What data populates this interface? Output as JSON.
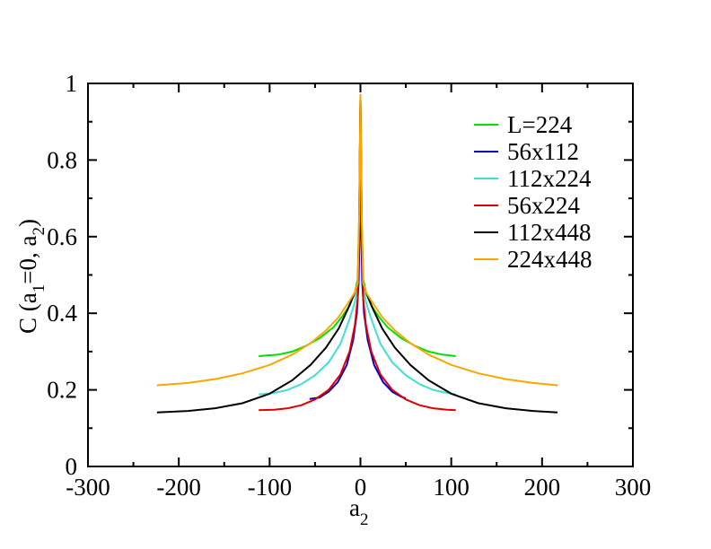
{
  "chart_data": {
    "type": "line",
    "xlabel": "a",
    "xlabel_sub": "2",
    "ylabel": {
      "prefix": "C (a",
      "sub1": "1",
      "mid": "=0, a",
      "sub2": "2",
      "suffix": ")"
    },
    "xlim": [
      -300,
      300
    ],
    "ylim": [
      0,
      1
    ],
    "x_ticks": [
      -300,
      -200,
      -100,
      0,
      100,
      200,
      300
    ],
    "x_tick_labels": [
      "-300",
      "-200",
      "-100",
      "0",
      "100",
      "200",
      "300"
    ],
    "y_ticks": [
      0,
      0.2,
      0.4,
      0.6,
      0.8,
      1
    ],
    "y_tick_labels": [
      "0",
      "0.2",
      "0.4",
      "0.6",
      "0.8",
      "1"
    ],
    "grid": false,
    "legend_position": "top-right",
    "series": [
      {
        "name": "L=224",
        "color": "#00e000",
        "points": [
          [
            -112,
            0.288
          ],
          [
            -90,
            0.292
          ],
          [
            -75,
            0.3
          ],
          [
            -60,
            0.315
          ],
          [
            -45,
            0.335
          ],
          [
            -30,
            0.363
          ],
          [
            -20,
            0.392
          ],
          [
            -12,
            0.42
          ],
          [
            -6,
            0.455
          ],
          [
            -3,
            0.49
          ],
          [
            -1.5,
            0.65
          ],
          [
            0,
            0.97
          ],
          [
            1.5,
            0.65
          ],
          [
            3,
            0.49
          ],
          [
            6,
            0.455
          ],
          [
            12,
            0.42
          ],
          [
            20,
            0.392
          ],
          [
            30,
            0.363
          ],
          [
            45,
            0.335
          ],
          [
            60,
            0.315
          ],
          [
            75,
            0.3
          ],
          [
            90,
            0.292
          ],
          [
            105,
            0.288
          ]
        ]
      },
      {
        "name": "56x112",
        "color": "#0000c0",
        "points": [
          [
            -56,
            0.176
          ],
          [
            -45,
            0.18
          ],
          [
            -35,
            0.195
          ],
          [
            -25,
            0.22
          ],
          [
            -15,
            0.265
          ],
          [
            -8,
            0.33
          ],
          [
            -4,
            0.4
          ],
          [
            -2,
            0.48
          ],
          [
            -1,
            0.6
          ],
          [
            0,
            0.96
          ],
          [
            1,
            0.6
          ],
          [
            2,
            0.48
          ],
          [
            4,
            0.4
          ],
          [
            8,
            0.33
          ],
          [
            15,
            0.265
          ],
          [
            25,
            0.22
          ],
          [
            35,
            0.195
          ],
          [
            45,
            0.182
          ],
          [
            50,
            0.178
          ]
        ]
      },
      {
        "name": "112x224",
        "color": "#40e0d0",
        "points": [
          [
            -112,
            0.188
          ],
          [
            -95,
            0.192
          ],
          [
            -80,
            0.2
          ],
          [
            -65,
            0.215
          ],
          [
            -50,
            0.238
          ],
          [
            -35,
            0.272
          ],
          [
            -22,
            0.32
          ],
          [
            -12,
            0.385
          ],
          [
            -6,
            0.43
          ],
          [
            -3,
            0.475
          ],
          [
            -1.5,
            0.62
          ],
          [
            0,
            0.97
          ],
          [
            1.5,
            0.62
          ],
          [
            3,
            0.475
          ],
          [
            6,
            0.43
          ],
          [
            12,
            0.385
          ],
          [
            22,
            0.32
          ],
          [
            35,
            0.272
          ],
          [
            50,
            0.238
          ],
          [
            65,
            0.215
          ],
          [
            80,
            0.2
          ],
          [
            95,
            0.192
          ],
          [
            105,
            0.188
          ]
        ]
      },
      {
        "name": "56x224",
        "color": "#e00000",
        "points": [
          [
            -112,
            0.147
          ],
          [
            -95,
            0.148
          ],
          [
            -80,
            0.152
          ],
          [
            -65,
            0.16
          ],
          [
            -50,
            0.175
          ],
          [
            -35,
            0.2
          ],
          [
            -22,
            0.24
          ],
          [
            -12,
            0.3
          ],
          [
            -6,
            0.37
          ],
          [
            -3,
            0.44
          ],
          [
            -1.5,
            0.6
          ],
          [
            0,
            0.96
          ],
          [
            1.5,
            0.6
          ],
          [
            3,
            0.44
          ],
          [
            6,
            0.37
          ],
          [
            12,
            0.3
          ],
          [
            22,
            0.24
          ],
          [
            35,
            0.2
          ],
          [
            50,
            0.175
          ],
          [
            65,
            0.16
          ],
          [
            80,
            0.152
          ],
          [
            95,
            0.148
          ],
          [
            105,
            0.147
          ]
        ]
      },
      {
        "name": "112x448",
        "color": "#000000",
        "points": [
          [
            -224,
            0.141
          ],
          [
            -190,
            0.145
          ],
          [
            -160,
            0.152
          ],
          [
            -130,
            0.165
          ],
          [
            -100,
            0.19
          ],
          [
            -75,
            0.225
          ],
          [
            -55,
            0.265
          ],
          [
            -38,
            0.31
          ],
          [
            -24,
            0.36
          ],
          [
            -14,
            0.41
          ],
          [
            -6,
            0.455
          ],
          [
            -3,
            0.475
          ],
          [
            -1.5,
            0.62
          ],
          [
            0,
            0.96
          ],
          [
            1.5,
            0.62
          ],
          [
            3,
            0.475
          ],
          [
            6,
            0.455
          ],
          [
            14,
            0.41
          ],
          [
            24,
            0.36
          ],
          [
            38,
            0.31
          ],
          [
            55,
            0.265
          ],
          [
            75,
            0.225
          ],
          [
            100,
            0.19
          ],
          [
            130,
            0.165
          ],
          [
            160,
            0.152
          ],
          [
            190,
            0.145
          ],
          [
            217,
            0.141
          ]
        ]
      },
      {
        "name": "224x448",
        "color": "#ffa500",
        "points": [
          [
            -224,
            0.212
          ],
          [
            -190,
            0.218
          ],
          [
            -160,
            0.228
          ],
          [
            -130,
            0.243
          ],
          [
            -100,
            0.265
          ],
          [
            -75,
            0.292
          ],
          [
            -55,
            0.322
          ],
          [
            -38,
            0.355
          ],
          [
            -24,
            0.39
          ],
          [
            -14,
            0.425
          ],
          [
            -6,
            0.455
          ],
          [
            -3,
            0.478
          ],
          [
            -1.5,
            0.64
          ],
          [
            0,
            0.97
          ],
          [
            1.5,
            0.64
          ],
          [
            3,
            0.478
          ],
          [
            6,
            0.455
          ],
          [
            14,
            0.425
          ],
          [
            24,
            0.39
          ],
          [
            38,
            0.355
          ],
          [
            55,
            0.322
          ],
          [
            75,
            0.292
          ],
          [
            100,
            0.265
          ],
          [
            130,
            0.243
          ],
          [
            160,
            0.228
          ],
          [
            190,
            0.218
          ],
          [
            217,
            0.212
          ]
        ]
      }
    ]
  }
}
